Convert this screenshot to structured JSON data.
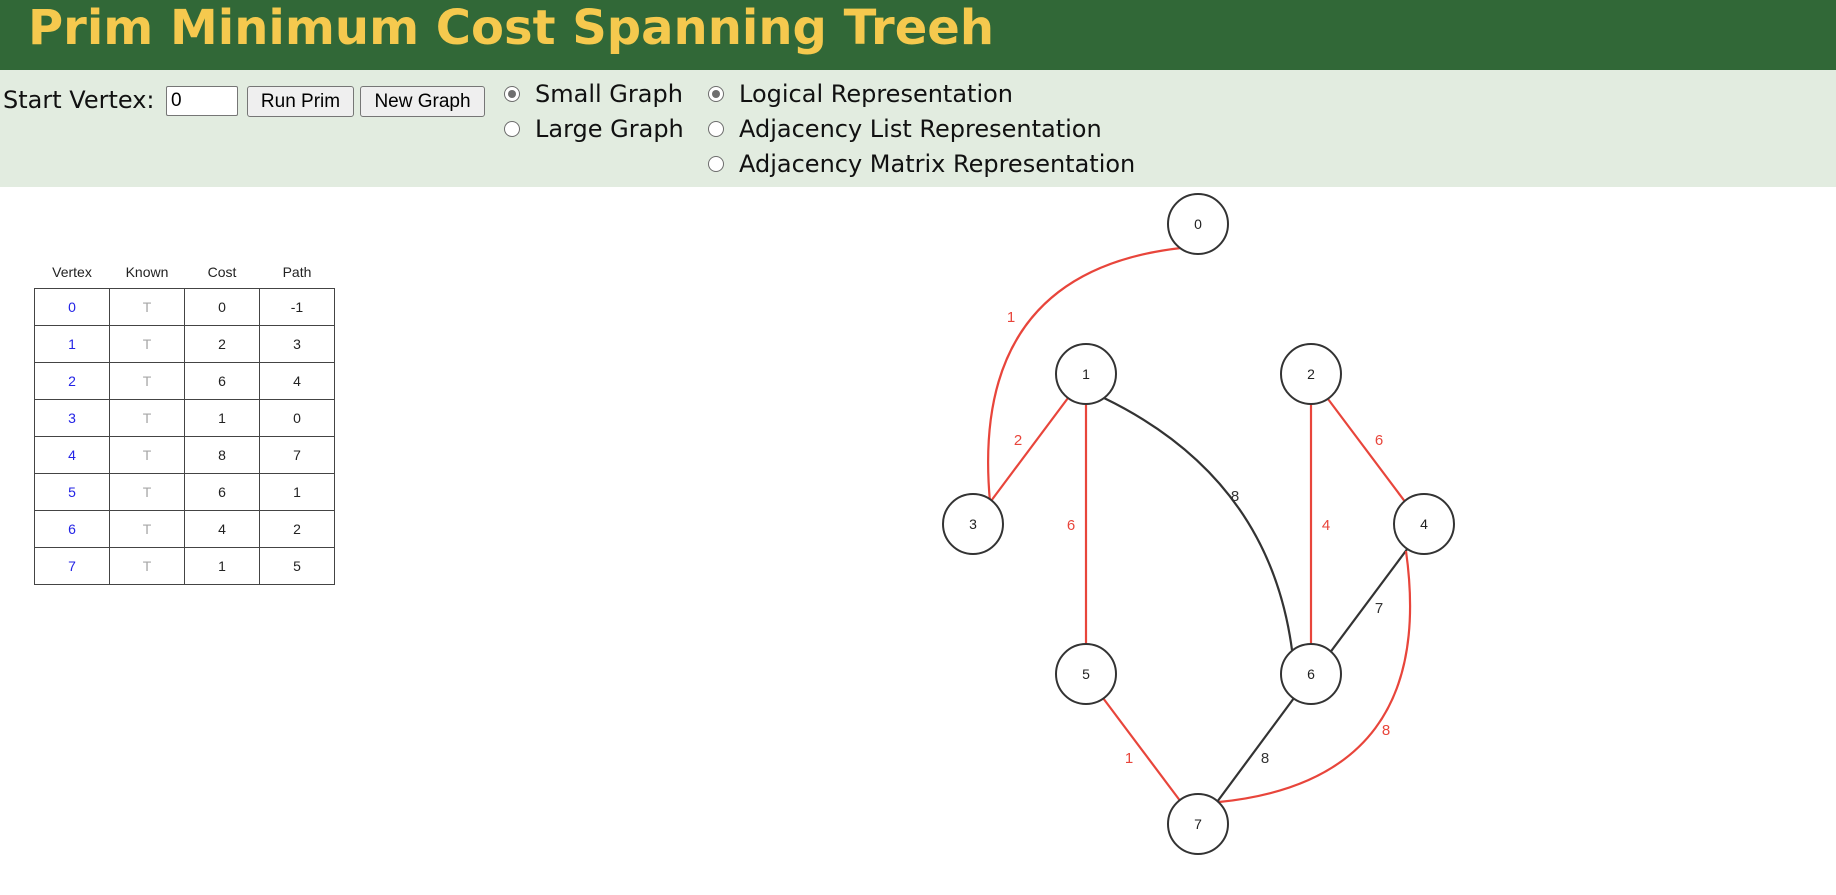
{
  "header": {
    "title": "Prim Minimum Cost Spanning Treeh"
  },
  "controls": {
    "start_label": "Start Vertex:",
    "start_value": "0",
    "run_label": "Run Prim",
    "new_graph_label": "New Graph",
    "size_options": [
      {
        "label": "Small Graph",
        "checked": true
      },
      {
        "label": "Large Graph",
        "checked": false
      }
    ],
    "representation_options": [
      {
        "label": "Logical Representation",
        "checked": true
      },
      {
        "label": "Adjacency List Representation",
        "checked": false
      },
      {
        "label": "Adjacency Matrix Representation",
        "checked": false
      }
    ]
  },
  "table": {
    "headers": [
      "Vertex",
      "Known",
      "Cost",
      "Path"
    ],
    "rows": [
      [
        "0",
        "T",
        "0",
        "-1"
      ],
      [
        "1",
        "T",
        "2",
        "3"
      ],
      [
        "2",
        "T",
        "6",
        "4"
      ],
      [
        "3",
        "T",
        "1",
        "0"
      ],
      [
        "4",
        "T",
        "8",
        "7"
      ],
      [
        "5",
        "T",
        "6",
        "1"
      ],
      [
        "6",
        "T",
        "4",
        "2"
      ],
      [
        "7",
        "T",
        "1",
        "5"
      ]
    ]
  },
  "graph": {
    "colors": {
      "tree_edge": "#e8453b",
      "other_edge": "#333333"
    },
    "nodes": [
      "0",
      "1",
      "2",
      "3",
      "4",
      "5",
      "6",
      "7"
    ],
    "edges": [
      {
        "from": "0",
        "to": "3",
        "weight": "1",
        "in_tree": true
      },
      {
        "from": "1",
        "to": "3",
        "weight": "2",
        "in_tree": true
      },
      {
        "from": "1",
        "to": "5",
        "weight": "6",
        "in_tree": true
      },
      {
        "from": "1",
        "to": "6",
        "weight": "8",
        "in_tree": false
      },
      {
        "from": "2",
        "to": "6",
        "weight": "4",
        "in_tree": true
      },
      {
        "from": "2",
        "to": "4",
        "weight": "6",
        "in_tree": true
      },
      {
        "from": "4",
        "to": "6",
        "weight": "7",
        "in_tree": false
      },
      {
        "from": "4",
        "to": "7",
        "weight": "8",
        "in_tree": true
      },
      {
        "from": "5",
        "to": "7",
        "weight": "1",
        "in_tree": true
      },
      {
        "from": "6",
        "to": "7",
        "weight": "8",
        "in_tree": false
      }
    ]
  }
}
